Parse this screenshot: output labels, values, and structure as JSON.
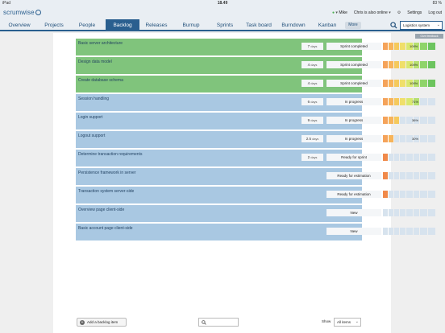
{
  "statusbar": {
    "device": "iPad",
    "wifi_icon": "wifi-icon",
    "time": "18.49",
    "battery": "83 %"
  },
  "header": {
    "brand": "scrumwise",
    "user_name": "Mike",
    "online_text": "Chris is also online",
    "settings_label": "Settings",
    "logout_label": "Log out"
  },
  "nav": {
    "tabs": [
      {
        "label": "Overview"
      },
      {
        "label": "Projects"
      },
      {
        "label": "People"
      },
      {
        "label": "Backlog",
        "active": true
      },
      {
        "label": "Releases"
      },
      {
        "label": "Burnup"
      },
      {
        "label": "Sprints"
      },
      {
        "label": "Task board"
      },
      {
        "label": "Burndown"
      },
      {
        "label": "Kanban"
      }
    ],
    "more_label": "More",
    "project": "Logistics system",
    "feedback_label": "Give feedback"
  },
  "backlog": {
    "items": [
      {
        "title": "Basic server architecture",
        "estimate": "7",
        "unit": "days",
        "status": "Sprint completed",
        "progress": "100%",
        "state": "done"
      },
      {
        "title": "Design data model",
        "estimate": "4",
        "unit": "days",
        "status": "Sprint completed",
        "progress": "100%",
        "state": "done"
      },
      {
        "title": "Create database schema",
        "estimate": "4",
        "unit": "days",
        "status": "Sprint completed",
        "progress": "100%",
        "state": "done"
      },
      {
        "title": "Session handling",
        "estimate": "6",
        "unit": "days",
        "status": "In progress",
        "progress": "71%",
        "state": "open"
      },
      {
        "title": "Login support",
        "estimate": "9",
        "unit": "days",
        "status": "In progress",
        "progress": "36%",
        "state": "open"
      },
      {
        "title": "Logout support",
        "estimate": "2.5",
        "unit": "days",
        "status": "In progress",
        "progress": "30%",
        "state": "open"
      },
      {
        "title": "Determine transaction requirements",
        "estimate": "2",
        "unit": "days",
        "status": "Ready for sprint",
        "progress": "",
        "state": "open"
      },
      {
        "title": "Persistence framework in server",
        "estimate": "",
        "unit": "",
        "status": "Ready for estimation",
        "progress": "",
        "state": "open"
      },
      {
        "title": "Transaction system server-side",
        "estimate": "",
        "unit": "",
        "status": "Ready for estimation",
        "progress": "",
        "state": "open"
      },
      {
        "title": "Overview page client-side",
        "estimate": "",
        "unit": "",
        "status": "New",
        "progress": "",
        "state": "open"
      },
      {
        "title": "Basic account page client-side",
        "estimate": "",
        "unit": "",
        "status": "New",
        "progress": "",
        "state": "open"
      }
    ]
  },
  "footer": {
    "add_label": "Add a backlog item",
    "search_placeholder": "",
    "show_label": "Show",
    "show_value": "All items"
  },
  "colors": {
    "brand": "#2a5f8f",
    "done_row": "#80c47c",
    "open_row": "#a9c8e2"
  }
}
